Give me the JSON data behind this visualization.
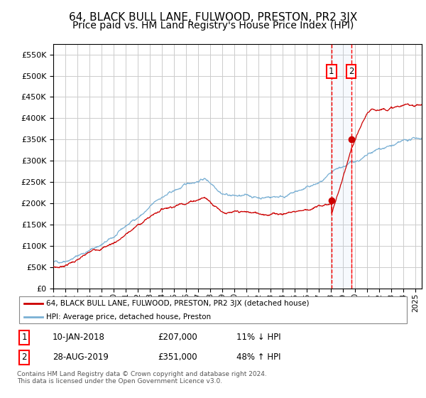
{
  "title": "64, BLACK BULL LANE, FULWOOD, PRESTON, PR2 3JX",
  "subtitle": "Price paid vs. HM Land Registry's House Price Index (HPI)",
  "ylim": [
    0,
    575000
  ],
  "yticks": [
    0,
    50000,
    100000,
    150000,
    200000,
    250000,
    300000,
    350000,
    400000,
    450000,
    500000,
    550000
  ],
  "xlim_start": 1995.0,
  "xlim_end": 2025.5,
  "transaction1_date": 2018.03,
  "transaction1_price": 207000,
  "transaction2_date": 2019.66,
  "transaction2_price": 351000,
  "transaction1_text": "10-JAN-2018",
  "transaction1_amount": "£207,000",
  "transaction1_hpi": "11% ↓ HPI",
  "transaction2_text": "28-AUG-2019",
  "transaction2_amount": "£351,000",
  "transaction2_hpi": "48% ↑ HPI",
  "line1_color": "#cc0000",
  "line2_color": "#7ab0d4",
  "marker_color": "#cc0000",
  "background_color": "#ffffff",
  "grid_color": "#cccccc",
  "legend_label1": "64, BLACK BULL LANE, FULWOOD, PRESTON, PR2 3JX (detached house)",
  "legend_label2": "HPI: Average price, detached house, Preston",
  "footer": "Contains HM Land Registry data © Crown copyright and database right 2024.\nThis data is licensed under the Open Government Licence v3.0.",
  "title_fontsize": 11,
  "subtitle_fontsize": 10
}
